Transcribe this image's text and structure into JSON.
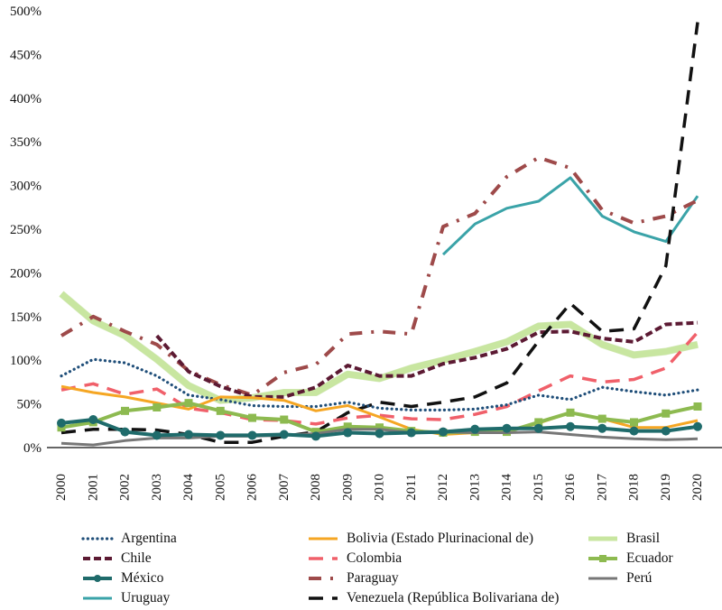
{
  "chart_data": {
    "type": "line",
    "title": "",
    "xlabel": "",
    "ylabel": "",
    "ylim": [
      0,
      500
    ],
    "y_tick_step": 50,
    "y_tick_labels": [
      "0%",
      "50%",
      "100%",
      "150%",
      "200%",
      "250%",
      "300%",
      "350%",
      "400%",
      "450%",
      "500%"
    ],
    "x": [
      "2000",
      "2001",
      "2002",
      "2003",
      "2004",
      "2005",
      "2006",
      "2007",
      "2008",
      "2009",
      "2010",
      "2011",
      "2012",
      "2013",
      "2014",
      "2015",
      "2016",
      "2017",
      "2018",
      "2019",
      "2020"
    ],
    "grid": false,
    "legend_position": "bottom",
    "series": [
      {
        "name": "Argentina",
        "color": "#1f4e79",
        "style": "dotted",
        "values": [
          82,
          101,
          97,
          82,
          60,
          55,
          48,
          47,
          47,
          52,
          45,
          43,
          43,
          44,
          49,
          60,
          55,
          69,
          64,
          60,
          66
        ]
      },
      {
        "name": "Bolivia (Estado Plurinacional de)",
        "color": "#f5a623",
        "style": "solid",
        "values": [
          70,
          63,
          58,
          51,
          44,
          58,
          57,
          54,
          42,
          48,
          35,
          21,
          15,
          17,
          18,
          28,
          40,
          33,
          23,
          23,
          31
        ]
      },
      {
        "name": "Brasil",
        "color": "#c8e6a0",
        "style": "solid-thick",
        "values": [
          176,
          145,
          128,
          101,
          71,
          54,
          57,
          63,
          63,
          84,
          79,
          91,
          100,
          110,
          121,
          139,
          141,
          118,
          106,
          110,
          118
        ]
      },
      {
        "name": "Chile",
        "color": "#5c1a33",
        "style": "dashed",
        "values": [
          null,
          null,
          null,
          128,
          87,
          70,
          58,
          58,
          69,
          94,
          82,
          82,
          96,
          103,
          113,
          132,
          133,
          125,
          121,
          141,
          143
        ]
      },
      {
        "name": "Colombia",
        "color": "#f0606a",
        "style": "long-dash",
        "values": [
          66,
          73,
          61,
          67,
          45,
          40,
          32,
          31,
          27,
          34,
          37,
          33,
          32,
          38,
          47,
          65,
          82,
          75,
          78,
          91,
          132
        ]
      },
      {
        "name": "Ecuador",
        "color": "#8dba50",
        "style": "solid-marker-square",
        "values": [
          23,
          29,
          42,
          46,
          51,
          42,
          34,
          32,
          18,
          24,
          23,
          19,
          17,
          18,
          18,
          29,
          40,
          33,
          29,
          39,
          47
        ]
      },
      {
        "name": "México",
        "color": "#1f6b6b",
        "style": "solid-marker-circle",
        "values": [
          28,
          32,
          18,
          14,
          15,
          14,
          14,
          15,
          13,
          17,
          16,
          17,
          18,
          21,
          22,
          22,
          24,
          22,
          19,
          19,
          24
        ]
      },
      {
        "name": "Paraguay",
        "color": "#9e4a4a",
        "style": "dash-dot",
        "values": [
          128,
          150,
          133,
          118,
          88,
          72,
          60,
          86,
          95,
          130,
          133,
          130,
          253,
          268,
          310,
          332,
          320,
          272,
          257,
          265,
          283
        ]
      },
      {
        "name": "Perú",
        "color": "#777777",
        "style": "solid",
        "values": [
          5,
          3,
          8,
          11,
          11,
          13,
          13,
          14,
          16,
          21,
          21,
          17,
          18,
          17,
          17,
          18,
          15,
          12,
          10,
          9,
          10
        ]
      },
      {
        "name": "Uruguay",
        "color": "#3aa3a8",
        "style": "solid",
        "values": [
          null,
          null,
          null,
          null,
          null,
          null,
          null,
          null,
          null,
          null,
          null,
          null,
          221,
          256,
          274,
          282,
          309,
          265,
          247,
          236,
          288
        ]
      },
      {
        "name": "Venezuela (República Bolivariana de)",
        "color": "#111111",
        "style": "long-dash",
        "values": [
          17,
          21,
          21,
          20,
          15,
          6,
          6,
          13,
          18,
          40,
          52,
          47,
          52,
          58,
          74,
          122,
          165,
          133,
          136,
          208,
          487
        ]
      }
    ]
  },
  "legend": {
    "items": [
      {
        "label": "Argentina"
      },
      {
        "label": "Bolivia (Estado Plurinacional de)"
      },
      {
        "label": "Brasil"
      },
      {
        "label": "Chile"
      },
      {
        "label": "Colombia"
      },
      {
        "label": "Ecuador"
      },
      {
        "label": "México"
      },
      {
        "label": "Paraguay"
      },
      {
        "label": "Perú"
      },
      {
        "label": "Uruguay"
      },
      {
        "label": "Venezuela (República Bolivariana de)"
      }
    ]
  }
}
